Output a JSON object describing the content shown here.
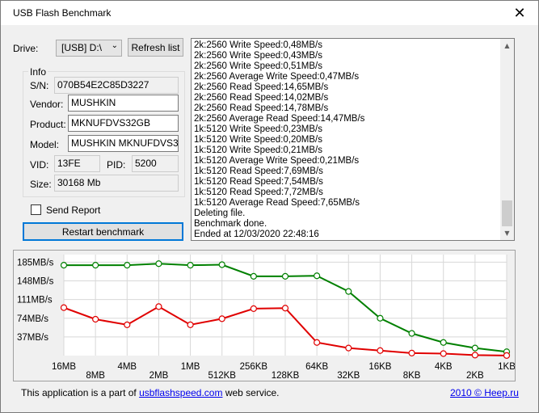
{
  "window": {
    "title": "USB Flash Benchmark",
    "close_glyph": "✕"
  },
  "drive": {
    "label": "Drive:",
    "value": "[USB] D:\\",
    "refresh_label": "Refresh list"
  },
  "info": {
    "group_label": "Info",
    "sn_label": "S/N:",
    "sn": "070B54E2C85D3227",
    "vendor_label": "Vendor:",
    "vendor": "MUSHKIN",
    "product_label": "Product:",
    "product": "MKNUFDVS32GB",
    "model_label": "Model:",
    "model": "MUSHKIN MKNUFDVS32GB",
    "vid_label": "VID:",
    "vid": "13FE",
    "pid_label": "PID:",
    "pid": "5200",
    "size_label": "Size:",
    "size": "30168 Mb"
  },
  "send_report": {
    "label": "Send Report",
    "checked": false
  },
  "restart_label": "Restart benchmark",
  "log": [
    "2k:2560 Write Speed:0,48MB/s",
    "2k:2560 Write Speed:0,43MB/s",
    "2k:2560 Write Speed:0,51MB/s",
    "2k:2560 Average Write Speed:0,47MB/s",
    "2k:2560 Read Speed:14,65MB/s",
    "2k:2560 Read Speed:14,02MB/s",
    "2k:2560 Read Speed:14,78MB/s",
    "2k:2560 Average Read Speed:14,47MB/s",
    "1k:5120 Write Speed:0,23MB/s",
    "1k:5120 Write Speed:0,20MB/s",
    "1k:5120 Write Speed:0,21MB/s",
    "1k:5120 Average Write Speed:0,21MB/s",
    "1k:5120 Read Speed:7,69MB/s",
    "1k:5120 Read Speed:7,54MB/s",
    "1k:5120 Read Speed:7,72MB/s",
    "1k:5120 Average Read Speed:7,65MB/s",
    "Deleting file.",
    "Benchmark done.",
    "Ended at 12/03/2020 22:48:16"
  ],
  "chart_data": {
    "type": "line",
    "categories": [
      "16MB",
      "8MB",
      "4MB",
      "2MB",
      "1MB",
      "512KB",
      "256KB",
      "128KB",
      "64KB",
      "32KB",
      "16KB",
      "8KB",
      "4KB",
      "2KB",
      "1KB"
    ],
    "y_ticks": [
      "185MB/s",
      "148MB/s",
      "111MB/s",
      "74MB/s",
      "37MB/s"
    ],
    "y_tick_values": [
      185,
      148,
      111,
      74,
      37
    ],
    "ylim": [
      0,
      200
    ],
    "grid": true,
    "series": [
      {
        "color": "#008000",
        "values": [
          179,
          179,
          179,
          182,
          179,
          180,
          157,
          157,
          158,
          127,
          74,
          44,
          26,
          15,
          7.65
        ]
      },
      {
        "color": "#e00000",
        "values": [
          95,
          72,
          61,
          97,
          61,
          73,
          93,
          94,
          26,
          15,
          10,
          5,
          4,
          1,
          0.21
        ]
      }
    ]
  },
  "footer": {
    "text_before": "This application is a part of ",
    "link": "usbflashspeed.com",
    "text_after": " web service.",
    "copyright": "2010 © Heep.ru"
  }
}
